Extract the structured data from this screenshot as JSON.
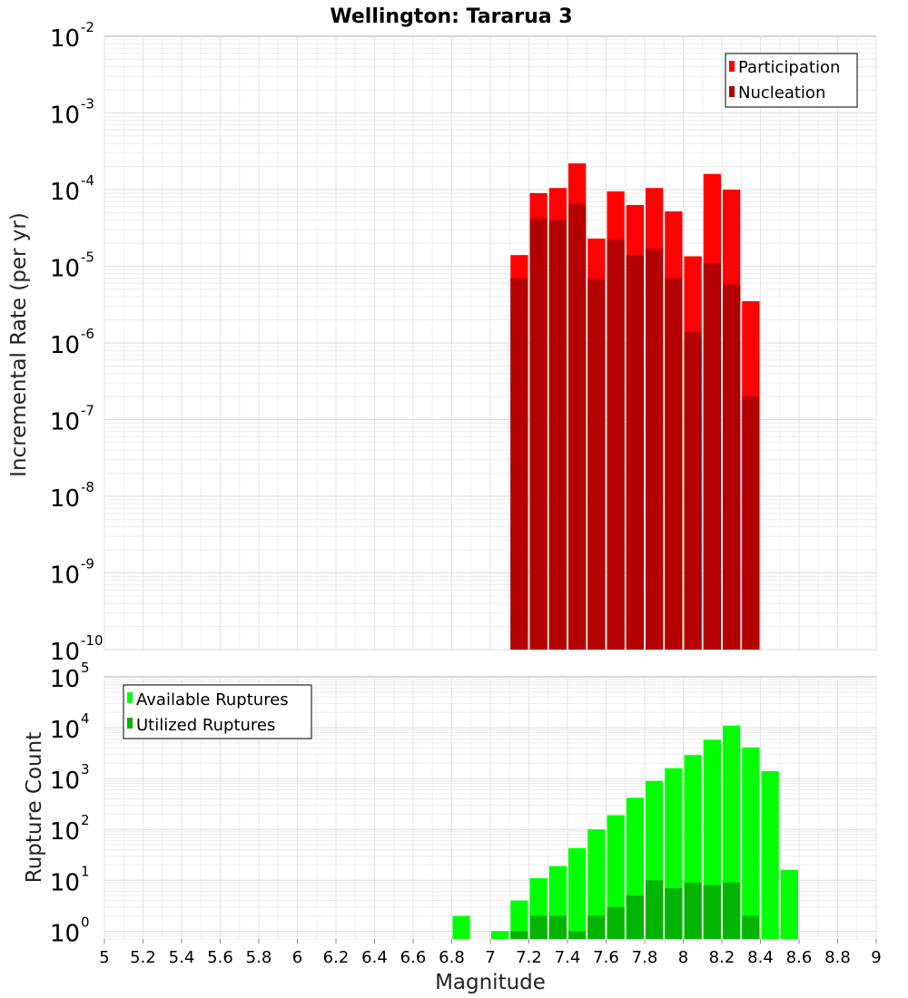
{
  "chart_data": [
    {
      "type": "bar",
      "title": "Wellington: Tararua 3",
      "xlabel": "",
      "ylabel": "Incremental Rate (per yr)",
      "yscale": "log",
      "xlim": [
        5,
        9
      ],
      "ylim": [
        1e-10,
        0.01
      ],
      "ytick_base": "10",
      "yticks": [
        {
          "exp": "-10"
        },
        {
          "exp": "-9"
        },
        {
          "exp": "-8"
        },
        {
          "exp": "-7"
        },
        {
          "exp": "-6"
        },
        {
          "exp": "-5"
        },
        {
          "exp": "-4"
        },
        {
          "exp": "-3"
        },
        {
          "exp": "-2"
        }
      ],
      "grid": true,
      "legend_position": "top-right",
      "bar_width": 0.1,
      "x": [
        7.15,
        7.25,
        7.35,
        7.45,
        7.55,
        7.65,
        7.75,
        7.85,
        7.95,
        8.05,
        8.15,
        8.25,
        8.35
      ],
      "series": [
        {
          "name": "Participation",
          "color": "#ff0000",
          "values": [
            1.4e-05,
            9e-05,
            0.000105,
            0.00022,
            2.3e-05,
            9.5e-05,
            6.3e-05,
            0.000105,
            5.2e-05,
            1.35e-05,
            0.00016,
            0.0001,
            3.5e-06
          ]
        },
        {
          "name": "Nucleation",
          "color": "#b30000",
          "values": [
            7e-06,
            4.2e-05,
            4e-05,
            6.5e-05,
            6.8e-06,
            2.2e-05,
            1.4e-05,
            1.7e-05,
            7e-06,
            1.4e-06,
            1.1e-05,
            5.8e-06,
            2e-07
          ]
        }
      ]
    },
    {
      "type": "bar",
      "title": "",
      "xlabel": "Magnitude",
      "ylabel": "Rupture Count",
      "yscale": "log",
      "xlim": [
        5,
        9
      ],
      "ylim": [
        0.7,
        100000
      ],
      "ytick_base": "10",
      "yticks": [
        {
          "exp": "0"
        },
        {
          "exp": "1"
        },
        {
          "exp": "2"
        },
        {
          "exp": "3"
        },
        {
          "exp": "4"
        },
        {
          "exp": "5"
        }
      ],
      "xticks": [
        "5",
        "5.2",
        "5.4",
        "5.6",
        "5.8",
        "6",
        "6.2",
        "6.4",
        "6.6",
        "6.8",
        "7",
        "7.2",
        "7.4",
        "7.6",
        "7.8",
        "8",
        "8.2",
        "8.4",
        "8.6",
        "8.8",
        "9"
      ],
      "grid": true,
      "legend_position": "top-left",
      "bar_width": 0.1,
      "series": [
        {
          "name": "Available Ruptures",
          "color": "#00ff00",
          "x": [
            6.85,
            7.05,
            7.15,
            7.25,
            7.35,
            7.45,
            7.55,
            7.65,
            7.75,
            7.85,
            7.95,
            8.05,
            8.15,
            8.25,
            8.35,
            8.45,
            8.55
          ],
          "values": [
            2,
            1,
            4,
            11,
            19,
            43,
            100,
            190,
            420,
            900,
            1600,
            2900,
            5800,
            11000,
            4100,
            1400,
            16
          ]
        },
        {
          "name": "Utilized Ruptures",
          "color": "#00b400",
          "x": [
            7.15,
            7.25,
            7.35,
            7.45,
            7.55,
            7.65,
            7.75,
            7.85,
            7.95,
            8.05,
            8.15,
            8.25,
            8.35
          ],
          "values": [
            1,
            2,
            2,
            1,
            2,
            3,
            5,
            10,
            7,
            9,
            8,
            9,
            2
          ]
        }
      ]
    }
  ]
}
